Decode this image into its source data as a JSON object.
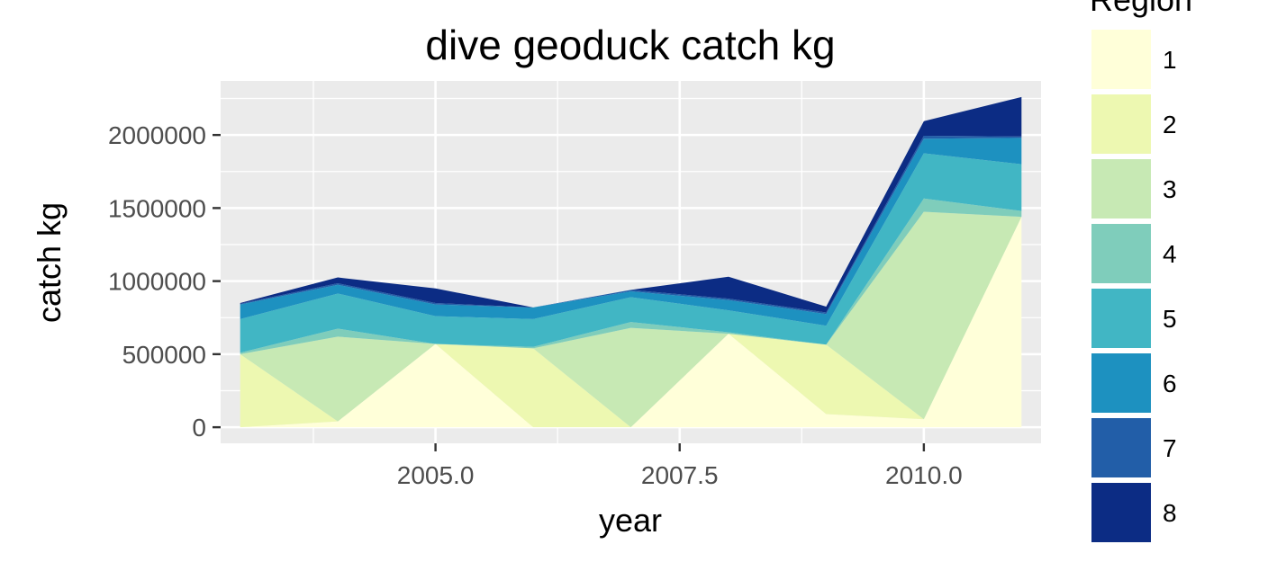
{
  "chart_data": {
    "type": "area",
    "stacked": true,
    "title": "dive geoduck catch kg",
    "xlabel": "year",
    "ylabel": "catch kg",
    "xlim": [
      2002.8,
      2011.2
    ],
    "ylim": [
      -110000,
      2370000
    ],
    "x_ticks": [
      2005.0,
      2007.5,
      2010.0
    ],
    "x_tick_labels": [
      "2005.0",
      "2007.5",
      "2010.0"
    ],
    "y_ticks": [
      0,
      500000,
      1000000,
      1500000,
      2000000
    ],
    "y_tick_labels": [
      "0",
      "500000",
      "1000000",
      "1500000",
      "2000000"
    ],
    "grid": true,
    "legend": {
      "title": "Region",
      "position": "right"
    },
    "x": [
      2003,
      2004,
      2005,
      2006,
      2007,
      2008,
      2009,
      2010,
      2011
    ],
    "series": [
      {
        "name": "1",
        "color": "#FFFFD9",
        "values": [
          0,
          40000,
          570000,
          0,
          0,
          640000,
          90000,
          55000,
          1440000
        ]
      },
      {
        "name": "2",
        "color": "#EDF8B1",
        "values": [
          500000,
          0,
          0,
          540000,
          0,
          0,
          475000,
          0,
          0
        ]
      },
      {
        "name": "3",
        "color": "#C7E9B4",
        "values": [
          0,
          580000,
          0,
          0,
          680000,
          0,
          0,
          1420000,
          0
        ]
      },
      {
        "name": "4",
        "color": "#7FCDBB",
        "values": [
          10000,
          55000,
          0,
          10000,
          40000,
          10000,
          0,
          90000,
          40000
        ]
      },
      {
        "name": "5",
        "color": "#41B6C4",
        "values": [
          230000,
          240000,
          190000,
          190000,
          170000,
          150000,
          130000,
          310000,
          320000
        ]
      },
      {
        "name": "6",
        "color": "#1D91C0",
        "values": [
          100000,
          60000,
          80000,
          80000,
          40000,
          70000,
          80000,
          100000,
          180000
        ]
      },
      {
        "name": "7",
        "color": "#225EA8",
        "values": [
          5000,
          10000,
          10000,
          0,
          10000,
          10000,
          10000,
          20000,
          10000
        ]
      },
      {
        "name": "8",
        "color": "#0C2C84",
        "values": [
          5000,
          40000,
          100000,
          0,
          0,
          150000,
          40000,
          100000,
          270000
        ]
      }
    ]
  }
}
